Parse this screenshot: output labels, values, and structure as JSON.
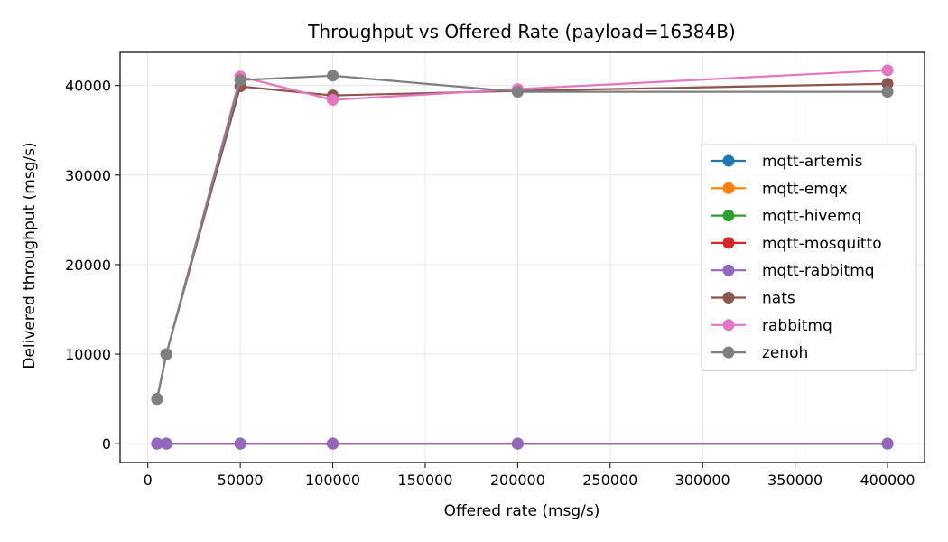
{
  "chart_data": {
    "type": "line",
    "title": "Throughput vs Offered Rate (payload=16384B)",
    "xlabel": "Offered rate (msg/s)",
    "ylabel": "Delivered throughput (msg/s)",
    "xlim": [
      -15000,
      420000
    ],
    "ylim": [
      -2100,
      43700
    ],
    "xticks": [
      0,
      50000,
      100000,
      150000,
      200000,
      250000,
      300000,
      350000,
      400000
    ],
    "yticks": [
      0,
      10000,
      20000,
      30000,
      40000
    ],
    "grid": true,
    "legend_position": "center-right",
    "x": [
      5000,
      10000,
      50000,
      100000,
      200000,
      400000
    ],
    "series": [
      {
        "name": "mqtt-artemis",
        "color": "#1f77b4",
        "values": [
          0,
          0,
          0,
          0,
          0,
          0
        ]
      },
      {
        "name": "mqtt-emqx",
        "color": "#ff7f0e",
        "values": [
          0,
          0,
          0,
          0,
          0,
          0
        ]
      },
      {
        "name": "mqtt-hivemq",
        "color": "#2ca02c",
        "values": [
          0,
          0,
          0,
          0,
          0,
          0
        ]
      },
      {
        "name": "mqtt-mosquitto",
        "color": "#d62728",
        "values": [
          0,
          0,
          0,
          0,
          0,
          0
        ]
      },
      {
        "name": "mqtt-rabbitmq",
        "color": "#9467bd",
        "values": [
          0,
          0,
          0,
          0,
          0,
          0
        ]
      },
      {
        "name": "nats",
        "color": "#8c564b",
        "values": [
          5000,
          10000,
          39900,
          38900,
          39400,
          40200
        ]
      },
      {
        "name": "rabbitmq",
        "color": "#e377c2",
        "values": [
          5000,
          10000,
          41000,
          38400,
          39600,
          41700
        ]
      },
      {
        "name": "zenoh",
        "color": "#7f7f7f",
        "values": [
          5000,
          10000,
          40600,
          41100,
          39300,
          39300
        ]
      }
    ]
  }
}
